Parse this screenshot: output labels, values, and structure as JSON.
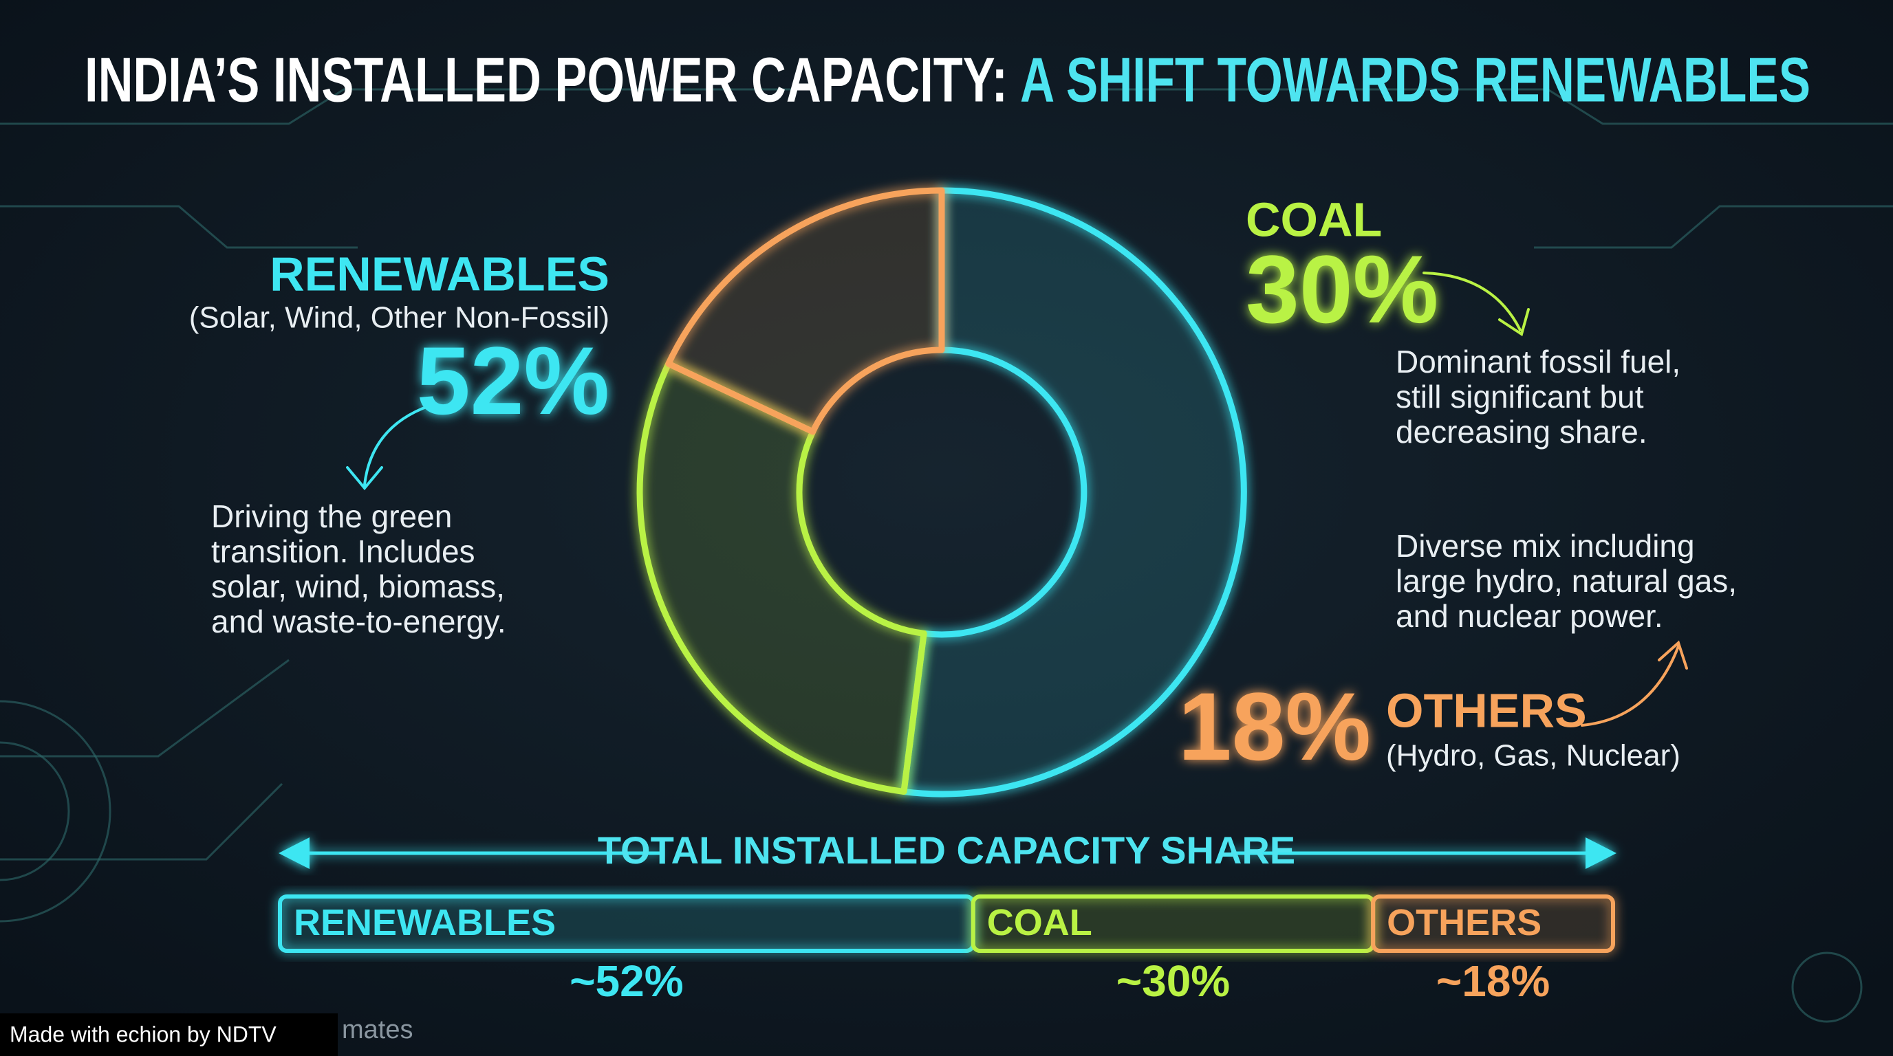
{
  "chart_data": {
    "type": "donut",
    "title_main": "INDIA’S INSTALLED POWER CAPACITY:",
    "title_highlight": "A SHIFT TOWARDS RENEWABLES",
    "categories": [
      "RENEWABLES",
      "COAL",
      "OTHERS"
    ],
    "values": [
      52,
      30,
      18
    ],
    "value_labels": [
      "52%",
      "30%",
      "18%"
    ],
    "colors": [
      "#3ee6f2",
      "#b9f244",
      "#f7a35c"
    ],
    "sublabels": [
      "(Solar, Wind, Other Non-Fossil)",
      null,
      "(Hydro, Gas, Nuclear)"
    ],
    "descriptions": [
      [
        "Driving the green",
        "transition. Includes",
        "solar, wind, biomass,",
        "and waste-to-energy."
      ],
      [
        "Dominant fossil fuel,",
        "still significant but",
        "decreasing share."
      ],
      [
        "Diverse mix including",
        "large hydro, natural gas,",
        "and nuclear power."
      ]
    ],
    "bar_title": "TOTAL INSTALLED CAPACITY SHARE",
    "bar_value_labels": [
      "~52%",
      "~30%",
      "~18%"
    ],
    "footer": {
      "watermark": "Made with echion by NDTV",
      "source_partial": "mates"
    }
  }
}
